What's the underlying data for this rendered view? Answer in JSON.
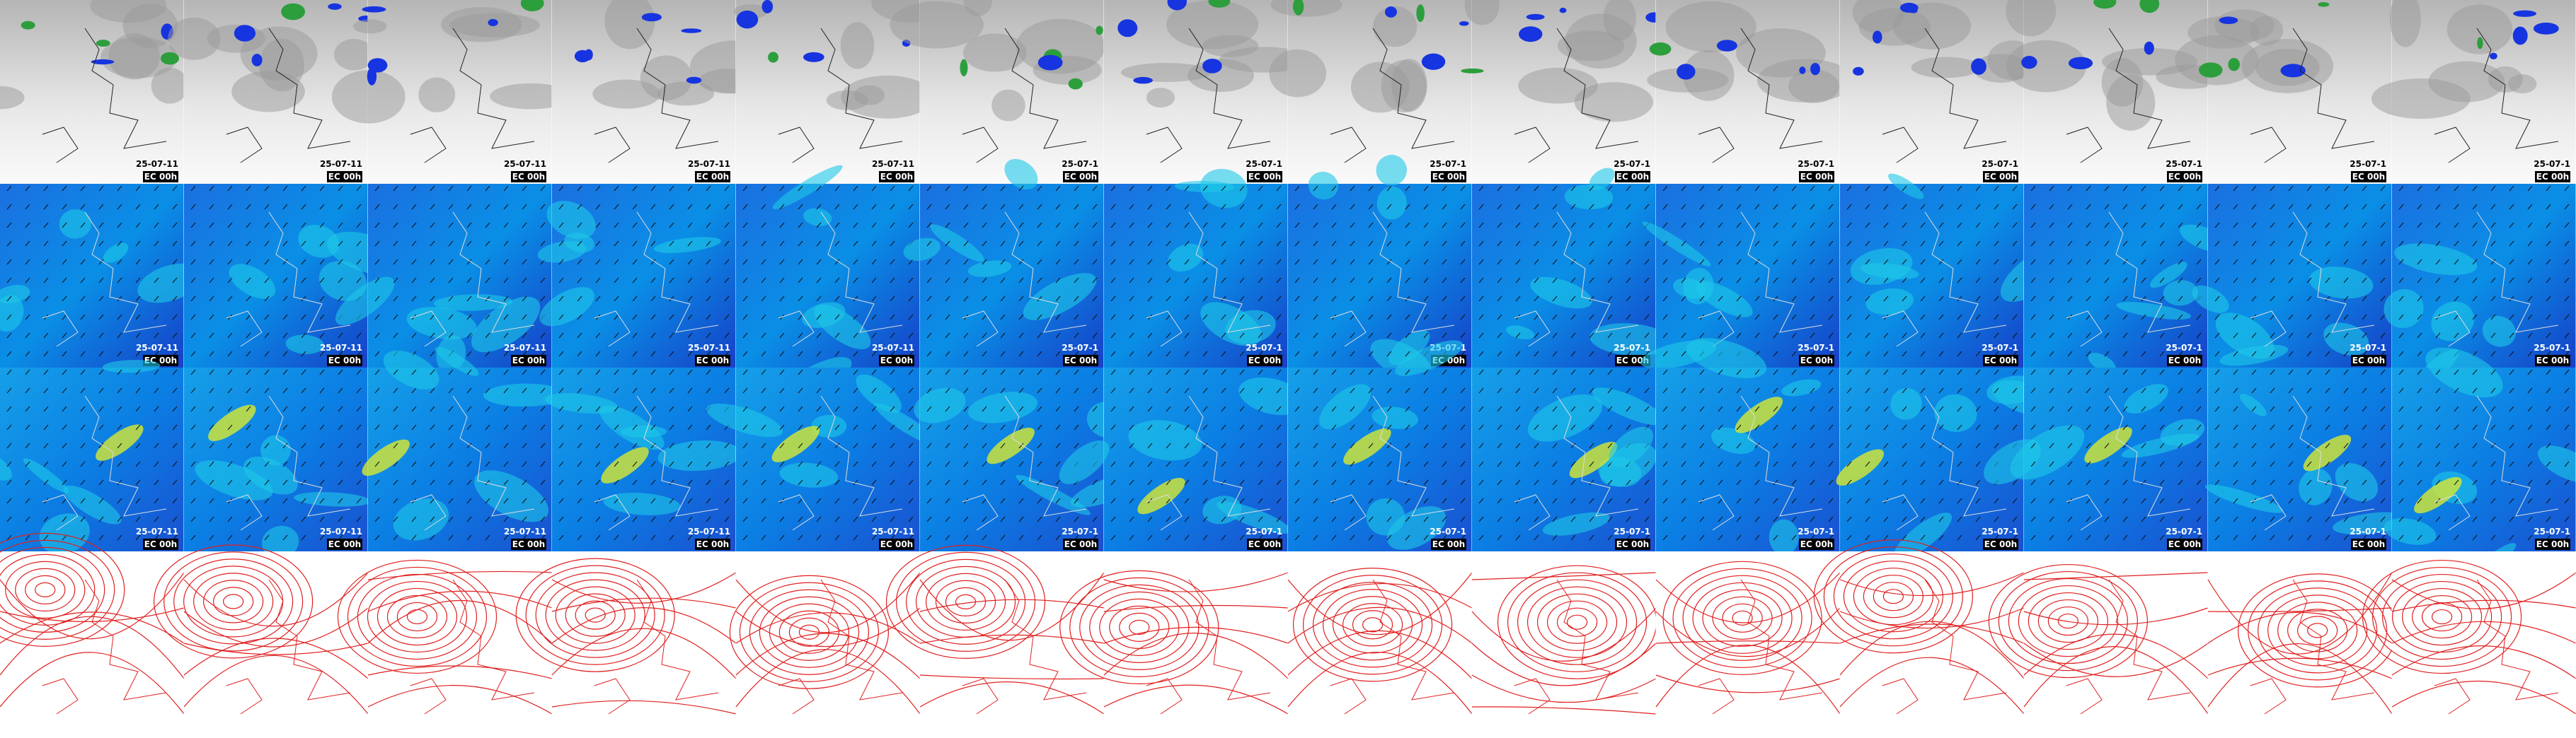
{
  "rows": [
    {
      "cells": [
        {
          "date": "25-07-11",
          "run": "EC 00h"
        },
        {
          "date": "25-07-11",
          "run": "EC 00h"
        },
        {
          "date": "25-07-11",
          "run": "EC 00h"
        },
        {
          "date": "25-07-11",
          "run": "EC 00h"
        },
        {
          "date": "25-07-11",
          "run": "EC 00h"
        },
        {
          "date": "25-07-1",
          "run": "EC 00h"
        },
        {
          "date": "25-07-1",
          "run": "EC 00h"
        },
        {
          "date": "25-07-1",
          "run": "EC 00h"
        },
        {
          "date": "25-07-1",
          "run": "EC 00h"
        },
        {
          "date": "25-07-1",
          "run": "EC 00h"
        },
        {
          "date": "25-07-1",
          "run": "EC 00h"
        },
        {
          "date": "25-07-1",
          "run": "EC 00h"
        },
        {
          "date": "25-07-1",
          "run": "EC 00h"
        },
        {
          "date": "25-07-1",
          "run": "EC 00h"
        }
      ]
    },
    {
      "cells": [
        {
          "date": "25-07-11",
          "run": "EC 00h"
        },
        {
          "date": "25-07-11",
          "run": "EC 00h"
        },
        {
          "date": "25-07-11",
          "run": "EC 00h"
        },
        {
          "date": "25-07-11",
          "run": "EC 00h"
        },
        {
          "date": "25-07-11",
          "run": "EC 00h"
        },
        {
          "date": "25-07-1",
          "run": "EC 00h"
        },
        {
          "date": "25-07-1",
          "run": "EC 00h"
        },
        {
          "date": "25-07-1",
          "run": "EC 00h"
        },
        {
          "date": "25-07-1",
          "run": "EC 00h"
        },
        {
          "date": "25-07-1",
          "run": "EC 00h"
        },
        {
          "date": "25-07-1",
          "run": "EC 00h"
        },
        {
          "date": "25-07-1",
          "run": "EC 00h"
        },
        {
          "date": "25-07-1",
          "run": "EC 00h"
        },
        {
          "date": "25-07-1",
          "run": "EC 00h"
        }
      ]
    },
    {
      "cells": [
        {
          "date": "25-07-11",
          "run": "EC 00h"
        },
        {
          "date": "25-07-11",
          "run": "EC 00h"
        },
        {
          "date": "25-07-11",
          "run": "EC 00h"
        },
        {
          "date": "25-07-11",
          "run": "EC 00h"
        },
        {
          "date": "25-07-11",
          "run": "EC 00h"
        },
        {
          "date": "25-07-1",
          "run": "EC 00h"
        },
        {
          "date": "25-07-1",
          "run": "EC 00h"
        },
        {
          "date": "25-07-1",
          "run": "EC 00h"
        },
        {
          "date": "25-07-1",
          "run": "EC 00h"
        },
        {
          "date": "25-07-1",
          "run": "EC 00h"
        },
        {
          "date": "25-07-1",
          "run": "EC 00h"
        },
        {
          "date": "25-07-1",
          "run": "EC 00h"
        },
        {
          "date": "25-07-1",
          "run": "EC 00h"
        },
        {
          "date": "25-07-1",
          "run": "EC 00h"
        }
      ]
    }
  ]
}
